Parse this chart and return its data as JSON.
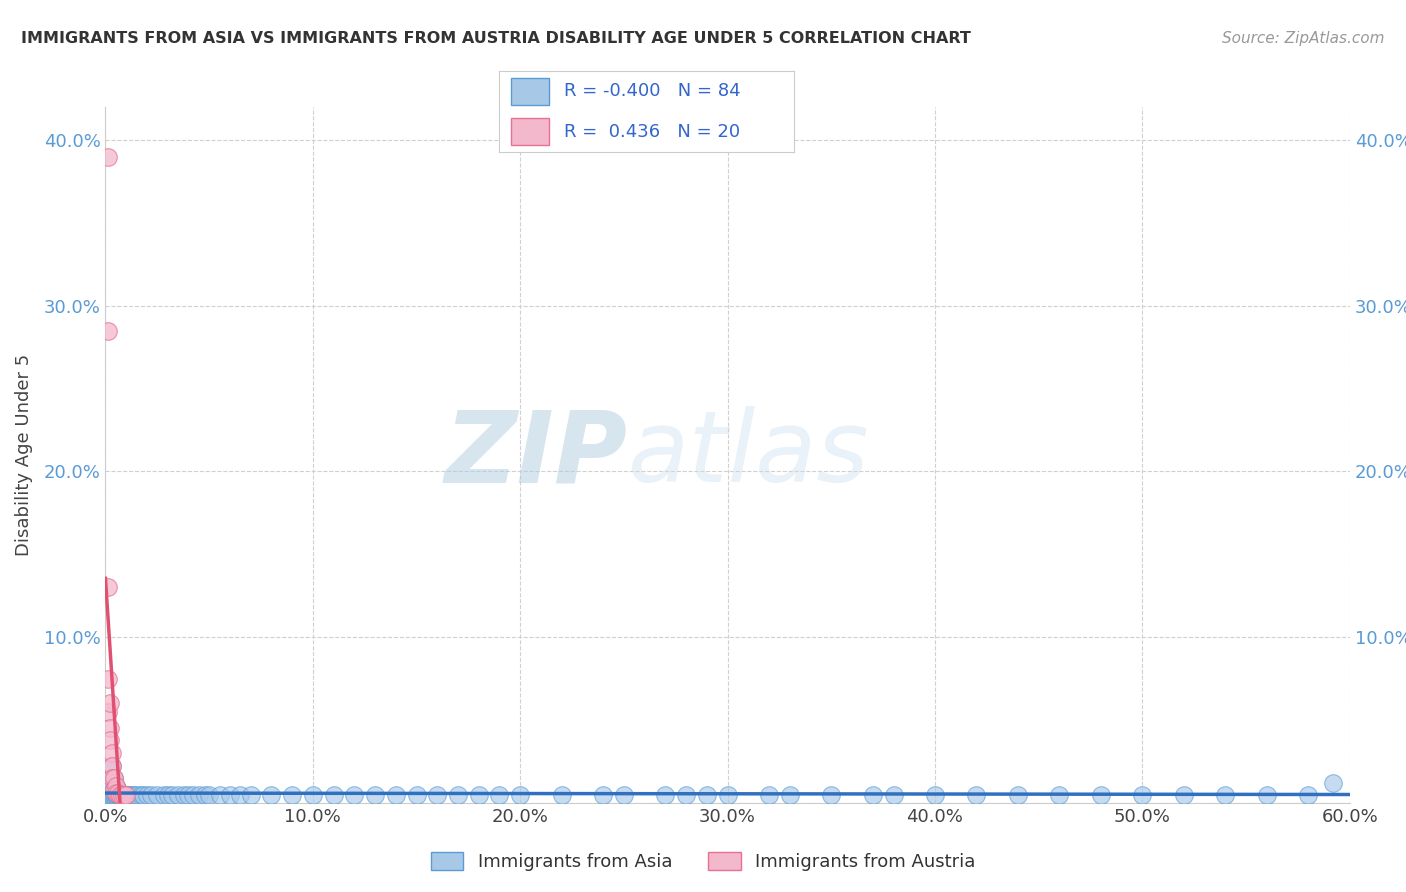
{
  "title": "IMMIGRANTS FROM ASIA VS IMMIGRANTS FROM AUSTRIA DISABILITY AGE UNDER 5 CORRELATION CHART",
  "source": "Source: ZipAtlas.com",
  "ylabel": "Disability Age Under 5",
  "legend_label_1": "Immigrants from Asia",
  "legend_label_2": "Immigrants from Austria",
  "R1": -0.4,
  "N1": 84,
  "R2": 0.436,
  "N2": 20,
  "color_asia_fill": "#a8c8e8",
  "color_asia_edge": "#5b9bd5",
  "color_austria_fill": "#f4b8cc",
  "color_austria_edge": "#e87090",
  "color_asia_line": "#3070c0",
  "color_austria_line": "#e05070",
  "xlim": [
    0.0,
    0.6
  ],
  "ylim": [
    0.0,
    0.42
  ],
  "xticks": [
    0.0,
    0.1,
    0.2,
    0.3,
    0.4,
    0.5,
    0.6
  ],
  "yticks": [
    0.0,
    0.1,
    0.2,
    0.3,
    0.4
  ],
  "watermark_zip": "ZIP",
  "watermark_atlas": "atlas",
  "asia_x": [
    0.001,
    0.001,
    0.001,
    0.002,
    0.002,
    0.002,
    0.003,
    0.003,
    0.004,
    0.004,
    0.005,
    0.005,
    0.006,
    0.006,
    0.007,
    0.007,
    0.008,
    0.008,
    0.009,
    0.01,
    0.011,
    0.012,
    0.013,
    0.014,
    0.015,
    0.017,
    0.018,
    0.02,
    0.022,
    0.025,
    0.028,
    0.03,
    0.032,
    0.035,
    0.038,
    0.04,
    0.042,
    0.045,
    0.048,
    0.05,
    0.055,
    0.06,
    0.065,
    0.07,
    0.08,
    0.09,
    0.1,
    0.11,
    0.12,
    0.13,
    0.14,
    0.15,
    0.16,
    0.17,
    0.18,
    0.19,
    0.2,
    0.22,
    0.24,
    0.25,
    0.27,
    0.28,
    0.29,
    0.3,
    0.32,
    0.33,
    0.35,
    0.37,
    0.38,
    0.4,
    0.42,
    0.44,
    0.46,
    0.48,
    0.5,
    0.52,
    0.54,
    0.56,
    0.58,
    0.592,
    0.003,
    0.004,
    0.005,
    0.006
  ],
  "asia_y": [
    0.005,
    0.007,
    0.01,
    0.005,
    0.006,
    0.008,
    0.005,
    0.006,
    0.005,
    0.006,
    0.005,
    0.006,
    0.005,
    0.005,
    0.005,
    0.006,
    0.005,
    0.005,
    0.005,
    0.005,
    0.005,
    0.005,
    0.005,
    0.005,
    0.005,
    0.005,
    0.005,
    0.005,
    0.005,
    0.005,
    0.005,
    0.005,
    0.005,
    0.005,
    0.005,
    0.005,
    0.005,
    0.005,
    0.005,
    0.005,
    0.005,
    0.005,
    0.005,
    0.005,
    0.005,
    0.005,
    0.005,
    0.005,
    0.005,
    0.005,
    0.005,
    0.005,
    0.005,
    0.005,
    0.005,
    0.005,
    0.005,
    0.005,
    0.005,
    0.005,
    0.005,
    0.005,
    0.005,
    0.005,
    0.005,
    0.005,
    0.005,
    0.005,
    0.005,
    0.005,
    0.005,
    0.005,
    0.005,
    0.005,
    0.005,
    0.005,
    0.005,
    0.005,
    0.005,
    0.012,
    0.022,
    0.015,
    0.01,
    0.008
  ],
  "austria_x": [
    0.001,
    0.001,
    0.001,
    0.001,
    0.001,
    0.002,
    0.002,
    0.002,
    0.003,
    0.003,
    0.003,
    0.004,
    0.004,
    0.005,
    0.005,
    0.006,
    0.007,
    0.008,
    0.009,
    0.01
  ],
  "austria_y": [
    0.39,
    0.285,
    0.13,
    0.075,
    0.055,
    0.06,
    0.045,
    0.038,
    0.03,
    0.022,
    0.015,
    0.015,
    0.008,
    0.01,
    0.006,
    0.006,
    0.005,
    0.005,
    0.005,
    0.005
  ]
}
